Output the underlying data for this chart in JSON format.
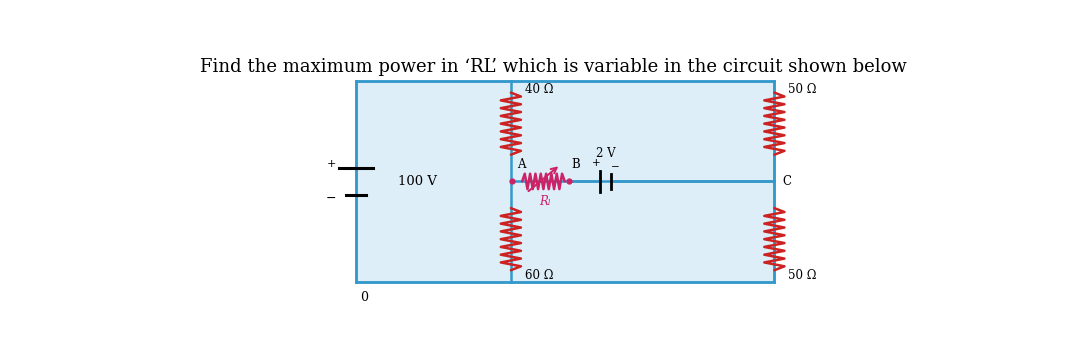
{
  "title": "Find the maximum power in ‘RL’ which is variable in the circuit shown below",
  "title_fontsize": 13,
  "bg_color": "#ffffff",
  "circuit_bg": "#ddeef8",
  "circuit_border": "#4499cc",
  "wire_color": "#3399cc",
  "resistor_color": "#cc2222",
  "rl_color": "#cc2266",
  "labels": {
    "V100": "100 V",
    "R40": "40 Ω",
    "R60": "60 Ω",
    "R50_tr": "50 Ω",
    "R50_br": "50 Ω",
    "RL": "Rₗ",
    "V2": "2 V",
    "A": "A",
    "B": "B",
    "C": "C",
    "O": "0",
    "plus": "+",
    "minus": "−"
  }
}
